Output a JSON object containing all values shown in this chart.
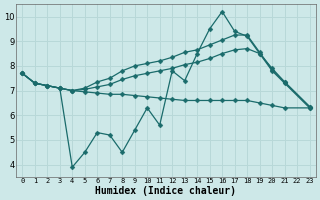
{
  "title": "",
  "xlabel": "Humidex (Indice chaleur)",
  "ylabel": "",
  "bg_color": "#cde8e8",
  "line_color": "#1a6b6b",
  "grid_color": "#b8d8d8",
  "xlim": [
    -0.5,
    23.5
  ],
  "ylim": [
    3.5,
    10.5
  ],
  "xtick_labels": [
    "0",
    "1",
    "2",
    "3",
    "4",
    "5",
    "6",
    "7",
    "8",
    "9",
    "10",
    "11",
    "12",
    "13",
    "14",
    "15",
    "16",
    "17",
    "18",
    "19",
    "20",
    "21",
    "22",
    "23"
  ],
  "yticks": [
    4,
    5,
    6,
    7,
    8,
    9,
    10
  ],
  "series": [
    [
      7.7,
      7.3,
      7.2,
      7.1,
      3.9,
      4.5,
      5.3,
      5.2,
      4.5,
      5.4,
      6.3,
      5.6,
      7.8,
      7.4,
      8.5,
      9.5,
      10.2,
      9.4,
      9.2,
      8.5,
      7.8,
      7.3,
      null,
      6.3
    ],
    [
      7.7,
      7.3,
      7.2,
      7.1,
      7.0,
      7.1,
      7.35,
      7.5,
      7.8,
      8.0,
      8.1,
      8.2,
      8.35,
      8.55,
      8.65,
      8.85,
      9.05,
      9.25,
      9.25,
      8.55,
      7.85,
      7.35,
      null,
      6.35
    ],
    [
      7.7,
      7.3,
      7.2,
      7.1,
      7.0,
      7.05,
      7.15,
      7.25,
      7.45,
      7.6,
      7.7,
      7.8,
      7.9,
      8.05,
      8.15,
      8.3,
      8.5,
      8.65,
      8.7,
      8.5,
      7.9,
      7.35,
      null,
      6.35
    ],
    [
      7.7,
      7.3,
      7.2,
      7.1,
      7.0,
      6.95,
      6.9,
      6.85,
      6.85,
      6.8,
      6.75,
      6.7,
      6.65,
      6.6,
      6.6,
      6.6,
      6.6,
      6.6,
      6.6,
      6.5,
      6.4,
      6.3,
      null,
      6.3
    ]
  ],
  "marker": "D",
  "markersize": 2.5,
  "linewidth": 0.9,
  "xlabel_fontsize": 7,
  "tick_fontsize": 5,
  "ytick_fontsize": 6
}
